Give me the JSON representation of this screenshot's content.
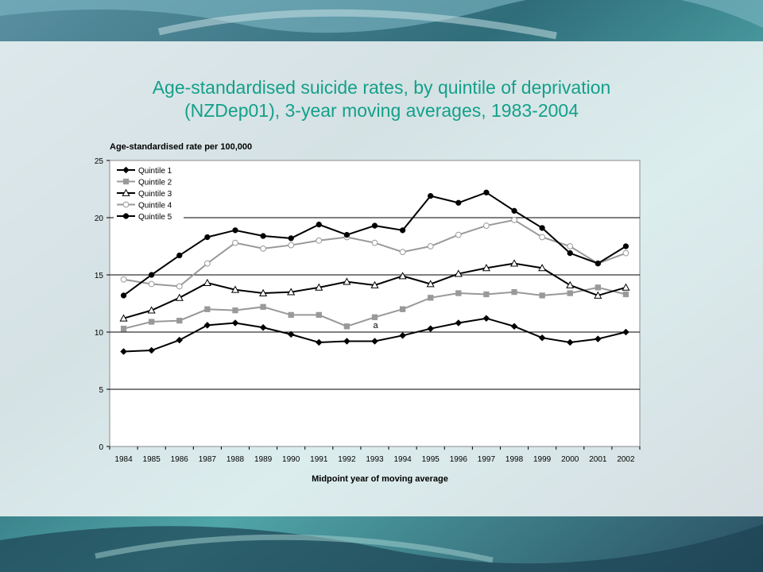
{
  "slide": {
    "title_line1": "Age-standardised suicide rates, by quintile of deprivation",
    "title_line2": "(NZDep01), 3-year moving averages, 1983-2004"
  },
  "chart_data": {
    "type": "line",
    "ylabel": "Age-standardised rate per 100,000",
    "xlabel": "Midpoint year of moving average",
    "categories": [
      "1984",
      "1985",
      "1986",
      "1987",
      "1988",
      "1989",
      "1990",
      "1991",
      "1992",
      "1993",
      "1994",
      "1995",
      "1996",
      "1997",
      "1998",
      "1999",
      "2000",
      "2001",
      "2002"
    ],
    "ylim": [
      0,
      25
    ],
    "yticks": [
      0,
      5,
      10,
      15,
      20,
      25
    ],
    "grid": "horizontal",
    "legend_position": "top-left",
    "annotation": {
      "text": "a",
      "category": "1993",
      "y": 10.5
    },
    "series": [
      {
        "name": "Quintile 1",
        "marker": "diamond",
        "color": "#000000",
        "values": [
          8.3,
          8.4,
          9.3,
          10.6,
          10.8,
          10.4,
          9.8,
          9.1,
          9.2,
          9.2,
          9.7,
          10.3,
          10.8,
          11.2,
          10.5,
          9.5,
          9.1,
          9.4,
          10.0
        ]
      },
      {
        "name": "Quintile 2",
        "marker": "square",
        "color": "#999999",
        "values": [
          10.3,
          10.9,
          11.0,
          12.0,
          11.9,
          12.2,
          11.5,
          11.5,
          10.5,
          11.3,
          12.0,
          13.0,
          13.4,
          13.3,
          13.5,
          13.2,
          13.4,
          13.9,
          13.3
        ]
      },
      {
        "name": "Quintile 3",
        "marker": "triangle",
        "color": "#000000",
        "values": [
          11.2,
          11.9,
          13.0,
          14.3,
          13.7,
          13.4,
          13.5,
          13.9,
          14.4,
          14.1,
          14.9,
          14.2,
          15.1,
          15.6,
          16.0,
          15.6,
          14.1,
          13.2,
          13.9
        ]
      },
      {
        "name": "Quintile 4",
        "marker": "circle-open",
        "color": "#999999",
        "values": [
          14.6,
          14.2,
          14.0,
          16.0,
          17.8,
          17.3,
          17.6,
          18.0,
          18.3,
          17.8,
          17.0,
          17.5,
          18.5,
          19.3,
          19.8,
          18.3,
          17.5,
          16.0,
          16.9
        ]
      },
      {
        "name": "Quintile 5",
        "marker": "circle",
        "color": "#000000",
        "values": [
          13.2,
          15.0,
          16.7,
          18.3,
          18.9,
          18.4,
          18.2,
          19.4,
          18.5,
          19.3,
          18.9,
          21.9,
          21.3,
          22.2,
          20.6,
          19.1,
          16.9,
          16.0,
          17.5
        ]
      }
    ]
  }
}
